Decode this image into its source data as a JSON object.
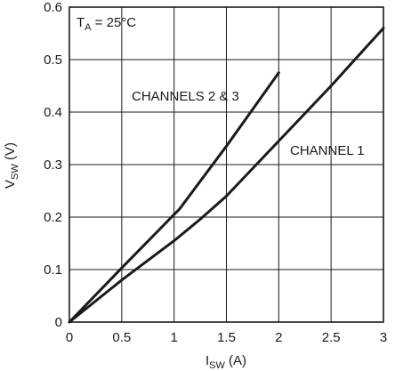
{
  "chart_data": {
    "type": "line",
    "title": "",
    "xlabel": {
      "main": "I",
      "sub": "SW",
      "unit": " (A)"
    },
    "ylabel": {
      "main": "V",
      "sub": "SW",
      "unit": " (V)"
    },
    "xlim": [
      0,
      3
    ],
    "ylim": [
      0,
      0.6
    ],
    "x_ticks": [
      "0",
      "0.5",
      "1",
      "1.5",
      "2",
      "2.5",
      "3"
    ],
    "y_ticks": [
      "0",
      "0.1",
      "0.2",
      "0.3",
      "0.4",
      "0.5",
      "0.6"
    ],
    "grid": true,
    "annotation": {
      "main": "T",
      "sub": "A",
      "rest": " = 25°C"
    },
    "series": [
      {
        "name": "CHANNELS 2 & 3",
        "x": [
          0,
          0.5,
          1.0,
          1.05,
          1.5,
          2.0
        ],
        "y": [
          0,
          0.103,
          0.205,
          0.215,
          0.335,
          0.475
        ]
      },
      {
        "name": "CHANNEL 1",
        "x": [
          0,
          0.5,
          1.0,
          1.25,
          1.5,
          2.0,
          2.5,
          3.0
        ],
        "y": [
          0,
          0.08,
          0.155,
          0.196,
          0.24,
          0.345,
          0.45,
          0.56
        ]
      }
    ],
    "line_color": "#1a1a1a",
    "grid_color": "#1a1a1a"
  }
}
